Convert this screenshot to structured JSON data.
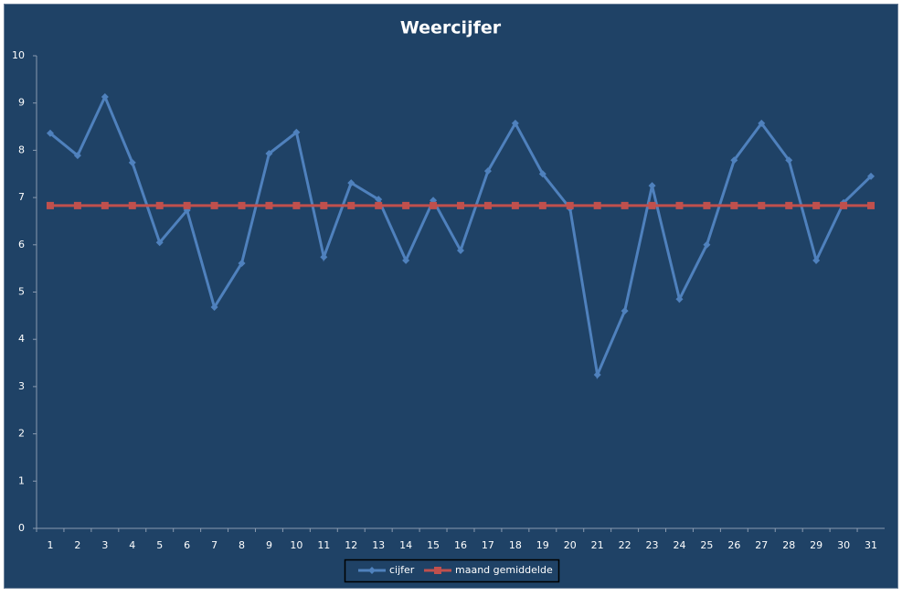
{
  "chart_data": {
    "type": "line",
    "title": "Weercijfer",
    "categories": [
      1,
      2,
      3,
      4,
      5,
      6,
      7,
      8,
      9,
      10,
      11,
      12,
      13,
      14,
      15,
      16,
      17,
      18,
      19,
      20,
      21,
      22,
      23,
      24,
      25,
      26,
      27,
      28,
      29,
      30,
      31
    ],
    "series": [
      {
        "name": "cijfer",
        "color": "#4f81bd",
        "marker": "diamond",
        "values": [
          8.36,
          7.89,
          9.13,
          7.74,
          6.05,
          6.73,
          4.68,
          5.61,
          7.93,
          8.38,
          5.74,
          7.31,
          6.96,
          5.67,
          6.94,
          5.88,
          7.56,
          8.57,
          7.5,
          6.77,
          3.25,
          4.6,
          7.25,
          4.85,
          6.0,
          7.79,
          8.57,
          7.79,
          5.67,
          6.89,
          7.45
        ]
      },
      {
        "name": "maand gemiddelde",
        "color": "#c0504d",
        "marker": "square",
        "values": [
          6.83,
          6.83,
          6.83,
          6.83,
          6.83,
          6.83,
          6.83,
          6.83,
          6.83,
          6.83,
          6.83,
          6.83,
          6.83,
          6.83,
          6.83,
          6.83,
          6.83,
          6.83,
          6.83,
          6.83,
          6.83,
          6.83,
          6.83,
          6.83,
          6.83,
          6.83,
          6.83,
          6.83,
          6.83,
          6.83,
          6.83
        ]
      }
    ],
    "ylim": [
      0,
      10
    ],
    "yticks": [
      0,
      1,
      2,
      3,
      4,
      5,
      6,
      7,
      8,
      9,
      10
    ],
    "grid": false,
    "legend": "bottom"
  }
}
